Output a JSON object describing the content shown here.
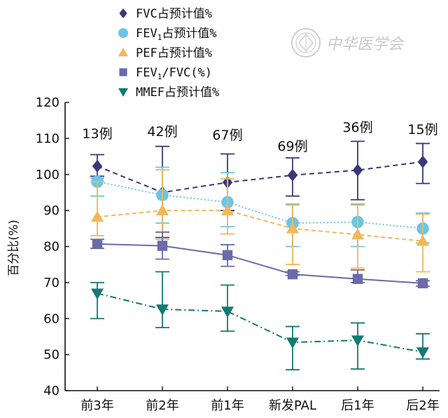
{
  "chart_data": {
    "type": "line",
    "categories": [
      "前3年",
      "前2年",
      "前1年",
      "新发PAL",
      "后1年",
      "后2年"
    ],
    "ylabel": "百分比(%)",
    "ylim": [
      40,
      120
    ],
    "yticks": [
      40,
      50,
      60,
      70,
      80,
      90,
      100,
      110,
      120
    ],
    "grid": false,
    "legend_position": "top",
    "counts": [
      "13例",
      "42例",
      "67例",
      "69例",
      "36例",
      "15例"
    ],
    "series": [
      {
        "name": "FVC占预计值%",
        "legend_parts": [
          "FVC占预计值%"
        ],
        "color": "#3b3878",
        "marker": "diamond",
        "dash": "7,5",
        "values": [
          102.3,
          95.0,
          97.8,
          99.8,
          101.2,
          103.5
        ],
        "err_low": [
          99.5,
          82.5,
          90.0,
          94.0,
          93.0,
          97.5
        ],
        "err_high": [
          105.5,
          107.8,
          105.7,
          104.6,
          109.2,
          108.6
        ]
      },
      {
        "name": "FEV1占预计值%",
        "legend_parts": [
          "FEV",
          "1",
          "占预计值%"
        ],
        "color": "#6cc5e6",
        "marker": "circle",
        "dash": "2,3",
        "values": [
          98.0,
          94.3,
          92.3,
          86.5,
          86.8,
          85.0
        ],
        "err_low": [
          94.0,
          86.5,
          85.5,
          80.0,
          80.0,
          81.0
        ],
        "err_high": [
          99.0,
          102.0,
          100.5,
          91.8,
          91.8,
          89.3
        ]
      },
      {
        "name": "PEF占预计值%",
        "legend_parts": [
          "PEF占预计值%"
        ],
        "color": "#f2b757",
        "marker": "triangle-up",
        "dash": "6,4",
        "values": [
          88.2,
          90.0,
          90.0,
          85.0,
          83.3,
          81.5
        ],
        "err_low": [
          83.0,
          82.0,
          83.5,
          75.0,
          74.0,
          73.0
        ],
        "err_high": [
          98.0,
          101.3,
          98.8,
          91.5,
          91.5,
          89.0
        ]
      },
      {
        "name": "FEV1/FVC(%)",
        "legend_parts": [
          "FEV",
          "1",
          "/FVC(%)"
        ],
        "color": "#6b6aaa",
        "marker": "square",
        "dash": "",
        "values": [
          80.7,
          80.2,
          77.6,
          72.3,
          71.0,
          69.8
        ],
        "err_low": [
          79.5,
          76.5,
          74.5,
          72.0,
          70.0,
          69.0
        ],
        "err_high": [
          82.0,
          84.0,
          80.5,
          73.0,
          73.5,
          70.5
        ]
      },
      {
        "name": "MMEF占预计值%",
        "legend_parts": [
          "MMEF占预计值%"
        ],
        "color": "#137a72",
        "marker": "triangle-down",
        "dash": "9,4,2,4",
        "values": [
          67.0,
          62.6,
          62.0,
          53.4,
          54.0,
          50.7
        ],
        "err_low": [
          60.0,
          57.5,
          56.5,
          45.8,
          46.0,
          48.8
        ],
        "err_high": [
          70.0,
          73.0,
          69.3,
          57.8,
          58.8,
          55.8
        ]
      }
    ]
  },
  "logo": {
    "text": "中华医学会"
  }
}
